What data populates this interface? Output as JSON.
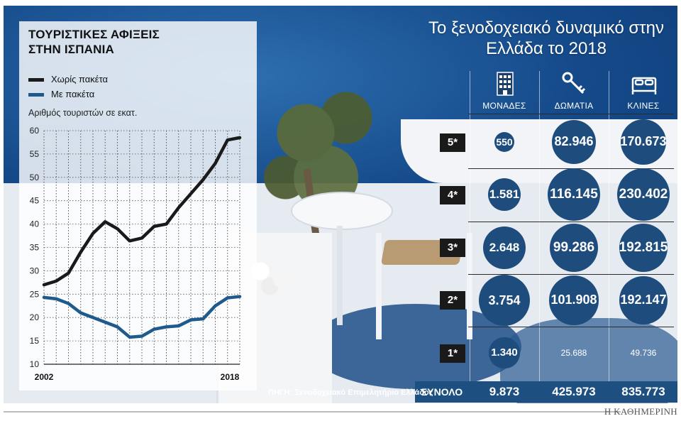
{
  "chart_data": {
    "type": "line",
    "title": "ΤΟΥΡΙΣΤΙΚΕΣ ΑΦΙΞΕΙΣ ΣΤΗΝ ΙΣΠΑΝΙΑ",
    "ylabel": "Αριθμός τουριστών σε εκατ.",
    "xlabel": "",
    "x": [
      2002,
      2003,
      2004,
      2005,
      2006,
      2007,
      2008,
      2009,
      2010,
      2011,
      2012,
      2013,
      2014,
      2015,
      2016,
      2017,
      2018
    ],
    "x_tick_labels": [
      "2002",
      "2018"
    ],
    "ylim": [
      10,
      60
    ],
    "y_ticks": [
      10,
      15,
      20,
      25,
      30,
      35,
      40,
      45,
      50,
      55,
      60
    ],
    "grid": true,
    "series": [
      {
        "name": "Χωρίς πακέτα",
        "color": "#1a1a1a",
        "values": [
          27,
          27.8,
          29.5,
          34,
          38,
          40.5,
          39,
          36.4,
          37,
          39.5,
          40,
          43.5,
          46.5,
          49.5,
          53,
          58,
          58.5
        ]
      },
      {
        "name": "Με πακέτα",
        "color": "#1f5a8c",
        "values": [
          24.3,
          24,
          23,
          21,
          20,
          19,
          18,
          15.8,
          16,
          17.5,
          18,
          18.2,
          19.5,
          19.7,
          22.5,
          24.2,
          24.5
        ]
      }
    ]
  },
  "hotel": {
    "title": "Το ξενοδοχειακό δυναμικό στην Ελλάδα το 2018",
    "columns": [
      {
        "label": "ΜΟΝΑΔΕΣ",
        "icon": "building-icon"
      },
      {
        "label": "ΔΩΜΑΤΙΑ",
        "icon": "key-icon"
      },
      {
        "label": "ΚΛΙΝΕΣ",
        "icon": "bed-icon"
      }
    ],
    "rows": [
      {
        "stars": "5*",
        "values": [
          "550",
          "82.946",
          "170.673"
        ],
        "raw": [
          550,
          82946,
          170673
        ]
      },
      {
        "stars": "4*",
        "values": [
          "1.581",
          "116.145",
          "230.402"
        ],
        "raw": [
          1581,
          116145,
          230402
        ]
      },
      {
        "stars": "3*",
        "values": [
          "2.648",
          "99.286",
          "192.815"
        ],
        "raw": [
          2648,
          99286,
          192815
        ]
      },
      {
        "stars": "2*",
        "values": [
          "3.754",
          "101.908",
          "192.147"
        ],
        "raw": [
          3754,
          101908,
          192147
        ]
      },
      {
        "stars": "1*",
        "values": [
          "1.340",
          "25.688",
          "49.736"
        ],
        "raw": [
          1340,
          25688,
          49736
        ]
      }
    ],
    "total_label": "ΣΥΝΟΛΟ",
    "totals": [
      "9.873",
      "425.973",
      "835.773"
    ]
  },
  "source": "ΠΗΓΗ: Ξενοδοχειακό Επιμελητήριο Ελλάδος",
  "brand": "Η ΚΑΘΗΜΕΡΙΝΗ",
  "colors": {
    "bubble": "#1e4d7d",
    "total_bar": "#1d4f80",
    "line_dark": "#1a1a1a",
    "line_blue": "#1f5a8c"
  }
}
